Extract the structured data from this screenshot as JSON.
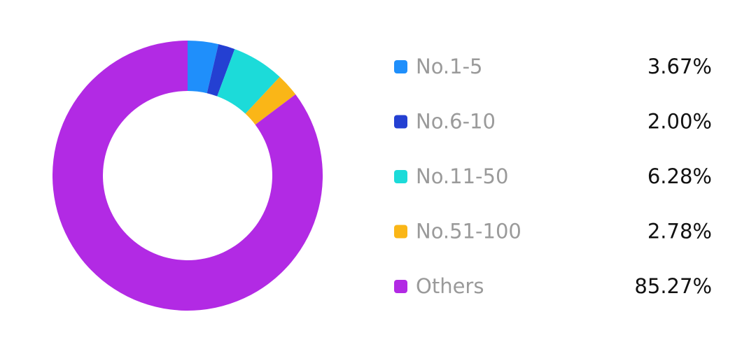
{
  "chart_data": {
    "type": "donut",
    "categories": [
      "No.1-5",
      "No.6-10",
      "No.11-50",
      "No.51-100",
      "Others"
    ],
    "values": [
      3.67,
      2.0,
      6.28,
      2.78,
      85.27
    ],
    "value_labels": [
      "3.67%",
      "2.00%",
      "6.28%",
      "2.78%",
      "85.27%"
    ],
    "colors": [
      "#1f8ffb",
      "#2440d2",
      "#1cdbd9",
      "#fab617",
      "#b22ae4"
    ]
  }
}
